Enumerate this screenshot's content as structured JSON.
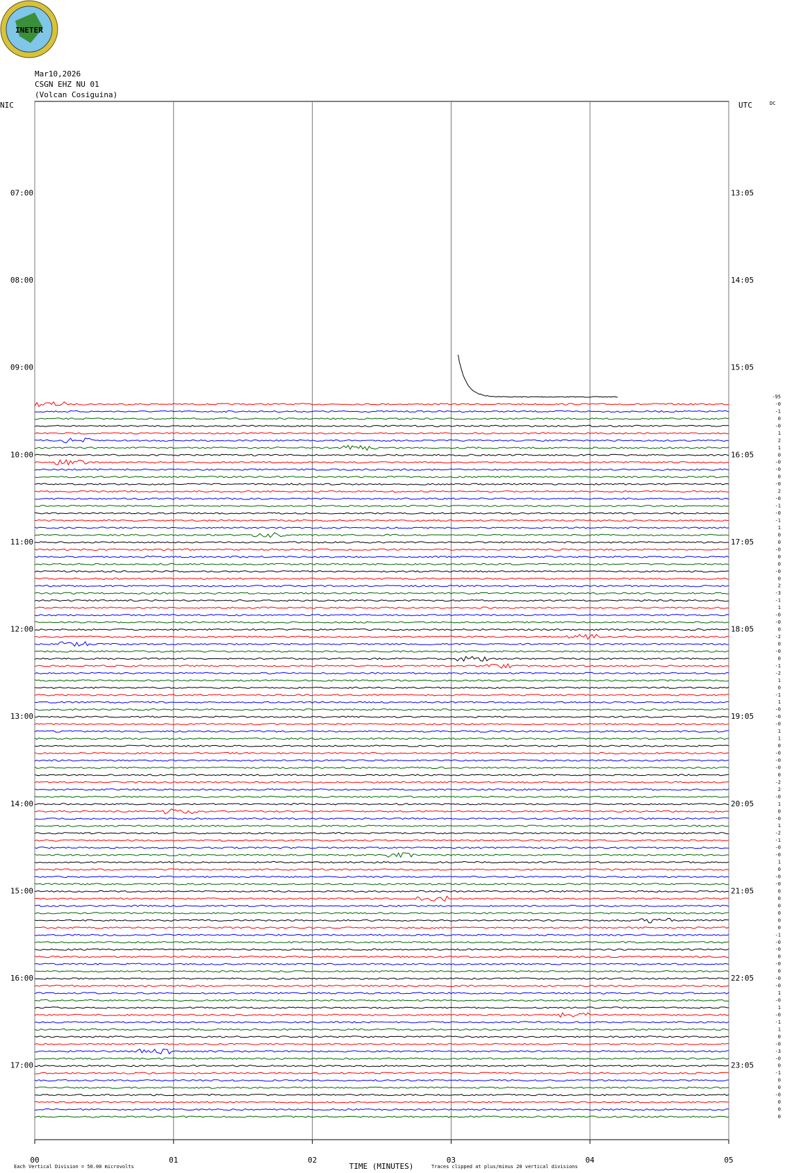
{
  "chart_data": {
    "type": "helicorder",
    "logo_text": "INETER",
    "header": [
      "Mar10,2026",
      "CSGN EHZ NU 01",
      "(Volcan Cosiguina)"
    ],
    "left_zone": "NIC",
    "right_zone": "UTC",
    "corner_note": "DC",
    "left_labels": [
      "07:00",
      "08:00",
      "09:00",
      "10:00",
      "11:00",
      "12:00",
      "13:00",
      "14:00",
      "15:00",
      "16:00",
      "17:00"
    ],
    "right_labels": [
      "13:05",
      "14:05",
      "15:05",
      "16:05",
      "17:05",
      "18:05",
      "19:05",
      "20:05",
      "21:05",
      "22:05",
      "23:05"
    ],
    "xlim": [
      0,
      5
    ],
    "xticks": [
      {
        "value": 0,
        "label": "00"
      },
      {
        "value": 1,
        "label": "01"
      },
      {
        "value": 2,
        "label": "02"
      },
      {
        "value": 3,
        "label": "03"
      },
      {
        "value": 4,
        "label": "04"
      },
      {
        "value": 5,
        "label": "05"
      }
    ],
    "x_label": "TIME (MINUTES)",
    "scale_note": "Each Vertical Division =    50.00 microvolts",
    "clip_note": "Traces clipped at plus/minus 20 vertical divisions",
    "trace_colors": [
      "#000000",
      "#ff0000",
      "#0000ff",
      "#006400"
    ],
    "trace_offsets": [
      "-95",
      "-0",
      "-1",
      "0",
      "-0",
      "1",
      "2",
      "1",
      "0",
      "-0",
      "-0",
      "0",
      "-0",
      "2",
      "-0",
      "-1",
      "-0",
      "-1",
      "1",
      "0",
      "0",
      "-0",
      "0",
      "0",
      "-0",
      "0",
      "2",
      "-3",
      "-1",
      "1",
      "-0",
      "-0",
      "0",
      "-2",
      "0",
      "-0",
      "0",
      "-1",
      "-2",
      "1",
      "0",
      "-1",
      "1",
      "-0",
      "-0",
      "-0",
      "1",
      "1",
      "0",
      "-0",
      "-0",
      "-0",
      "0",
      "-2",
      "2",
      "-0",
      "1",
      "0",
      "-0",
      "1",
      "-2",
      "-1",
      "-0",
      "-0",
      "1",
      "0",
      "-0",
      "-0",
      "0",
      "0",
      "0",
      "0",
      "0",
      "0",
      "-1",
      "-0",
      "-0",
      "0",
      "-0",
      "0",
      "-0",
      "-0",
      "1",
      "-0",
      "1",
      "-0",
      "-1",
      "1",
      "0",
      "-0",
      "-3",
      "-0",
      "0",
      "-1",
      "0",
      "0",
      "-0",
      "0",
      "0",
      "0"
    ]
  }
}
